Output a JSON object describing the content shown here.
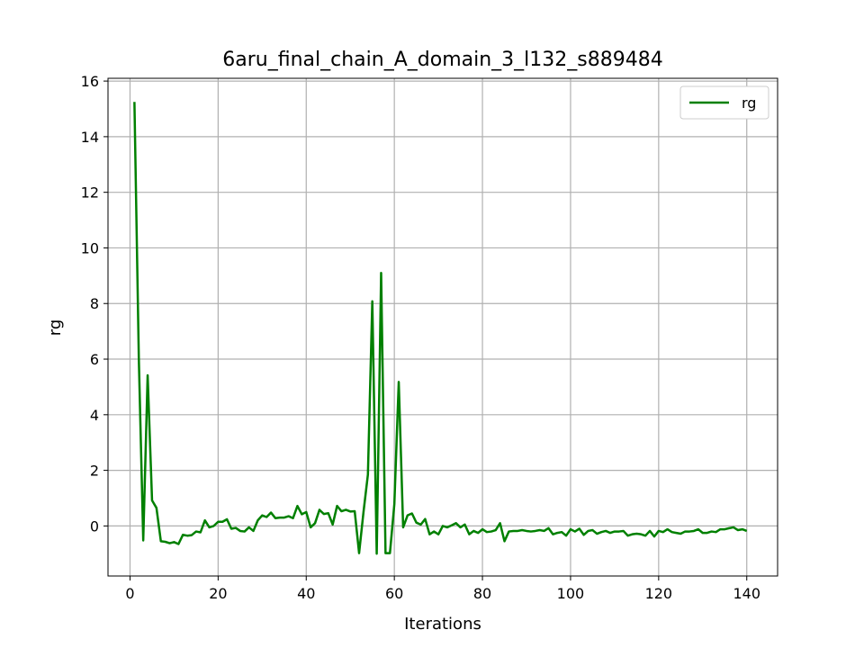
{
  "chart_data": {
    "type": "line",
    "title": "6aru_final_chain_A_domain_3_l132_s889484",
    "xlabel": "Iterations",
    "ylabel": "rg",
    "xlim": [
      -5,
      147
    ],
    "ylim": [
      -1.8,
      16.1
    ],
    "xticks": [
      0,
      20,
      40,
      60,
      80,
      100,
      120,
      140
    ],
    "yticks": [
      0,
      2,
      4,
      6,
      8,
      10,
      12,
      14,
      16
    ],
    "grid": true,
    "legend_position": "top-right",
    "series": [
      {
        "name": "rg",
        "color": "#008000",
        "x": [
          1,
          2,
          3,
          4,
          5,
          6,
          7,
          8,
          9,
          10,
          11,
          12,
          13,
          14,
          15,
          16,
          17,
          18,
          19,
          20,
          21,
          22,
          23,
          24,
          25,
          26,
          27,
          28,
          29,
          30,
          31,
          32,
          33,
          34,
          35,
          36,
          37,
          38,
          39,
          40,
          41,
          42,
          43,
          44,
          45,
          46,
          47,
          48,
          49,
          50,
          51,
          52,
          53,
          54,
          55,
          56,
          57,
          58,
          59,
          60,
          61,
          62,
          63,
          64,
          65,
          66,
          67,
          68,
          69,
          70,
          71,
          72,
          73,
          74,
          75,
          76,
          77,
          78,
          79,
          80,
          81,
          82,
          83,
          84,
          85,
          86,
          87,
          88,
          89,
          90,
          91,
          92,
          93,
          94,
          95,
          96,
          97,
          98,
          99,
          100,
          101,
          102,
          103,
          104,
          105,
          106,
          107,
          108,
          109,
          110,
          111,
          112,
          113,
          114,
          115,
          116,
          117,
          118,
          119,
          120,
          121,
          122,
          123,
          124,
          125,
          126,
          127,
          128,
          129,
          130,
          131,
          132,
          133,
          134,
          135,
          136,
          137,
          138,
          139,
          140
        ],
        "y": [
          15.25,
          6.0,
          -0.52,
          5.42,
          0.92,
          0.65,
          -0.55,
          -0.57,
          -0.62,
          -0.58,
          -0.65,
          -0.32,
          -0.35,
          -0.33,
          -0.2,
          -0.23,
          0.2,
          -0.05,
          0.0,
          0.15,
          0.15,
          0.24,
          -0.1,
          -0.07,
          -0.18,
          -0.2,
          -0.05,
          -0.18,
          0.2,
          0.38,
          0.32,
          0.48,
          0.28,
          0.3,
          0.3,
          0.35,
          0.28,
          0.72,
          0.42,
          0.5,
          -0.05,
          0.1,
          0.58,
          0.43,
          0.46,
          0.05,
          0.72,
          0.53,
          0.58,
          0.52,
          0.53,
          -0.98,
          0.5,
          1.85,
          8.08,
          -1.0,
          9.1,
          -0.98,
          -0.98,
          0.78,
          5.18,
          -0.05,
          0.38,
          0.45,
          0.12,
          0.05,
          0.25,
          -0.3,
          -0.2,
          -0.3,
          0.0,
          -0.05,
          0.02,
          0.1,
          -0.05,
          0.05,
          -0.3,
          -0.18,
          -0.25,
          -0.12,
          -0.22,
          -0.2,
          -0.15,
          0.1,
          -0.55,
          -0.2,
          -0.18,
          -0.18,
          -0.15,
          -0.18,
          -0.2,
          -0.18,
          -0.15,
          -0.18,
          -0.08,
          -0.3,
          -0.25,
          -0.22,
          -0.35,
          -0.12,
          -0.2,
          -0.1,
          -0.32,
          -0.18,
          -0.15,
          -0.28,
          -0.22,
          -0.18,
          -0.25,
          -0.2,
          -0.2,
          -0.18,
          -0.35,
          -0.3,
          -0.28,
          -0.3,
          -0.35,
          -0.18,
          -0.38,
          -0.18,
          -0.22,
          -0.12,
          -0.22,
          -0.25,
          -0.28,
          -0.2,
          -0.2,
          -0.18,
          -0.12,
          -0.25,
          -0.25,
          -0.2,
          -0.22,
          -0.12,
          -0.12,
          -0.08,
          -0.05,
          -0.15,
          -0.12,
          -0.18
        ]
      }
    ]
  }
}
